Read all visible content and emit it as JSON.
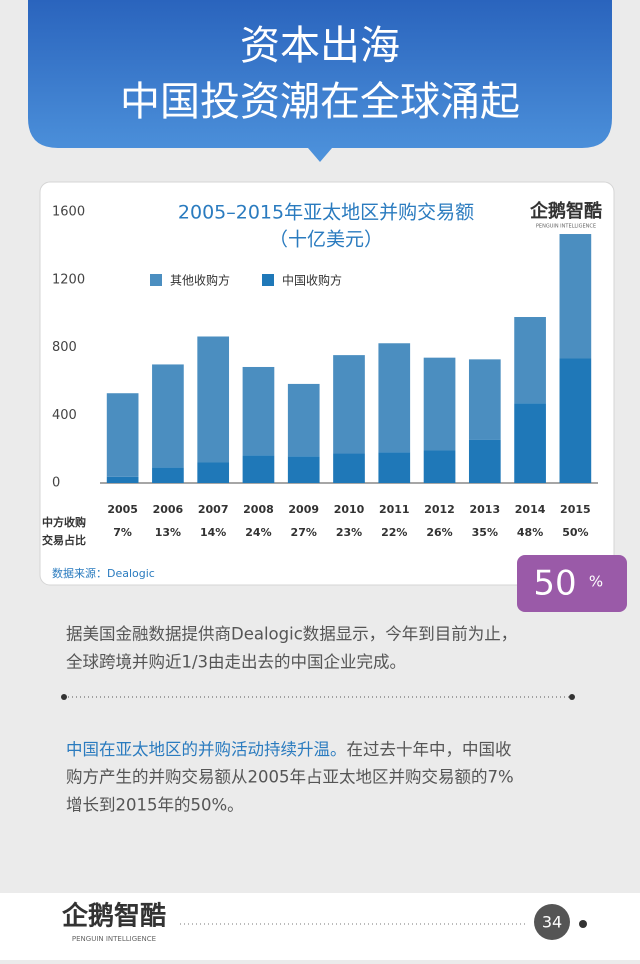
{
  "header": {
    "title_lines": [
      "资本出海",
      "中国投资潮在全球涌起"
    ]
  },
  "chart_data": {
    "type": "bar",
    "stacked": true,
    "title_lines": [
      "2005–2015年亚太地区并购交易额",
      "（十亿美元）"
    ],
    "logo": "企鹅智酷",
    "logo_sub": "PENGUIN INTELLIGENCE",
    "categories": [
      "2005",
      "2006",
      "2007",
      "2008",
      "2009",
      "2010",
      "2011",
      "2012",
      "2013",
      "2014",
      "2015"
    ],
    "series": [
      {
        "name": "其他收购方",
        "color": "#4b8ec0",
        "values": [
          493,
          609,
          744,
          521,
          427,
          581,
          643,
          548,
          474,
          510,
          735
        ]
      },
      {
        "name": "中国收购方",
        "color": "#1f78b8",
        "values": [
          37,
          91,
          121,
          164,
          158,
          174,
          182,
          192,
          256,
          470,
          735
        ]
      }
    ],
    "share_row_label": [
      "中方收购",
      "交易占比"
    ],
    "share_labels": [
      "7%",
      "13%",
      "14%",
      "24%",
      "27%",
      "23%",
      "22%",
      "26%",
      "35%",
      "48%",
      "50%"
    ],
    "source": "数据来源：Dealogic",
    "ylim": [
      0,
      1600
    ],
    "yticks": [
      0,
      400,
      800,
      1200,
      1600
    ],
    "grid": false,
    "legend": "top-left"
  },
  "badge": {
    "value": "50",
    "unit": "%"
  },
  "paragraph1": [
    "据美国金融数据提供商Dealogic数据显示，今年到目前为止，",
    "全球跨境并购近1/3由走出去的中国企业完成。"
  ],
  "paragraph2": {
    "highlight": "中国在亚太地区的并购活动持续升温。",
    "lines": [
      "在过去十年中，中国收",
      "购方产生的并购交易额从2005年占亚太地区并购交易额的7%",
      "增长到2015年的50%。"
    ]
  },
  "footer": {
    "logo": "企鹅智酷",
    "logo_sub": "PENGUIN INTELLIGENCE",
    "page": "34"
  }
}
